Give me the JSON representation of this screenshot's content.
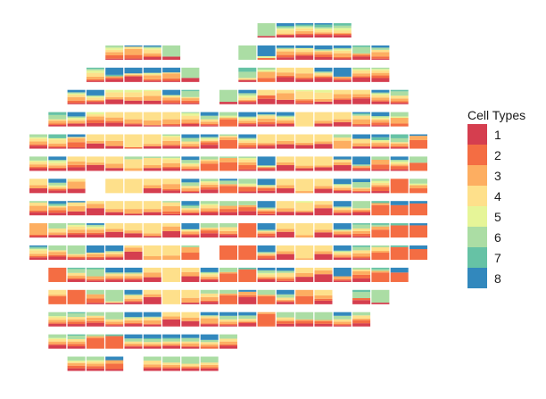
{
  "chart_data": {
    "type": "bar",
    "subtype": "spatial stacked composition per spot",
    "title": "",
    "xlabel": "",
    "ylabel": "",
    "legend": {
      "title": "Cell Types",
      "placement": "right",
      "entries": [
        "1",
        "2",
        "3",
        "4",
        "5",
        "6",
        "7",
        "8"
      ],
      "colors": [
        "#D53E4F",
        "#F46D43",
        "#FDAE61",
        "#FEE08B",
        "#E6F598",
        "#ABDDA4",
        "#66C2A5",
        "#3288BD"
      ]
    },
    "encoding_note": "each spot = 8 relative weights for cell types 1..8 (stacked bottom to top); '.' = no spot",
    "rows": [
      {
        "row": 0,
        "start_col": 12,
        "spots": "10000800 20131112 21221111 21121121 21122220"
      },
      {
        "row": 1,
        "start_col": 4,
        "spots": "13322200 13520001 21231101 20000700 . . . 00000800 01001006 22320102 31221002 22210103 11321102 21100410 12420202"
      },
      {
        "row": 2,
        "start_col": 3,
        "spots": "11232110 21100015 40110004 11311004 12410004 20000500 . . 10010320 02301100 31230000 21340000 31120103 11100005 31221100 32221100"
      },
      {
        "row": 3,
        "start_col": 2,
        "spots": "12321102 21121105 40242000 30342000 30441000 12211004 12210510 . 10000500 21122203 32030000 40630000 12161000 20252000 31330000 41230000 21221102 11220310"
      },
      {
        "row": 4,
        "start_col": 1,
        "spots": "11210320 20211103 33322000 42460000 21470000 10470000 11460000 21332100 11220303 04101200 21221104 22330102 21221103 00070000 20260000 30250000 11430111 12211103 02401300"
      },
      {
        "row": 5,
        "start_col": 0,
        "spots": "21221200 11231030 14310002 40250000 20450000 01090000 20280000 21331100 11220303 32111102 06210100 12221103 21160000 40360000 30270000 40260000 00520200 20340004 11211022 11210330 06300001"
      },
      {
        "row": 6,
        "start_col": 0,
        "spots": "21221300 21222103 32340000 50250000 20350000 00270200 20250100 21331100 11221303 05210200 06300100 13221100 11001005 40240000 20270000 20150000 40220002 11100105 13300200 12111102 04000300"
      },
      {
        "row": 7,
        "start_col": 0,
        "spots": "30240000 21111203 30520000 . 00060000 00070000 30240000 21440000 11220303 32221200 04100201 13011300 22110105 30240000 00160000 30250000 21221105 11210503 12111100 08000000 03201300"
      },
      {
        "row": 8,
        "start_col": 0,
        "spots": "21320100 22210112 30430001 50320000 20250000 10350000 20250000 12430100 21220214 21221200 22200300 22100200 12110105 20240000 20151000 40220000 21220105 21110500 05100010 05000002 05000001"
      },
      {
        "row": 9,
        "start_col": 0,
        "spots": "11800000 20230400 21221100 21211101 40240000 30250000 10270000 40320000 21211005 32110300 21230300 03000000 12110105 40240000 00150000 40250000 21210105 12220310 05200110 06000010 06000001"
      },
      {
        "row": 10,
        "start_col": 0,
        "spots": "21231111 21210300 11110600 11210005 21220105 40210000 00260000 00370000 04300100 . 08000000 08000000 12110105 40240000 00180000 40240000 21221105 11220210 04120100 08000010 06000002"
      },
      {
        "row": 11,
        "start_col": 1,
        "spots": "08000000 21220310 11200510 21220104 21220104 30330000 00070000 40330000 21221104 06100300 08000010 21121202 12240203 40340000 60320000 11200006 22210100 06100110 06000003"
      },
      {
        "row": 12,
        "start_col": 1,
        "spots": "05130000 07000000 13300300 10010800 21230104 50230000 00060000 10350000 21330300 05100200 41200001 05100300 21120304 04300000 21230000 . 21000310 10000800"
      },
      {
        "row": 13,
        "start_col": 1,
        "spots": "21221300 22220310 21210200 11220600 21220104 21430105 50230000 30230000 21520103 11220303 31120303 07100000 22120400 22100500 22100600 11220303 22120200"
      },
      {
        "row": 14,
        "start_col": 1,
        "spots": "31221300 22220310 06100100 08000010 21220304 21220314 31220314 21320404 02220205 21220300"
      },
      {
        "row": 15,
        "start_col": 2,
        "spots": "22211300 22221300 13200002 . 21230300 21220500 21120600 21220500"
      }
    ]
  }
}
